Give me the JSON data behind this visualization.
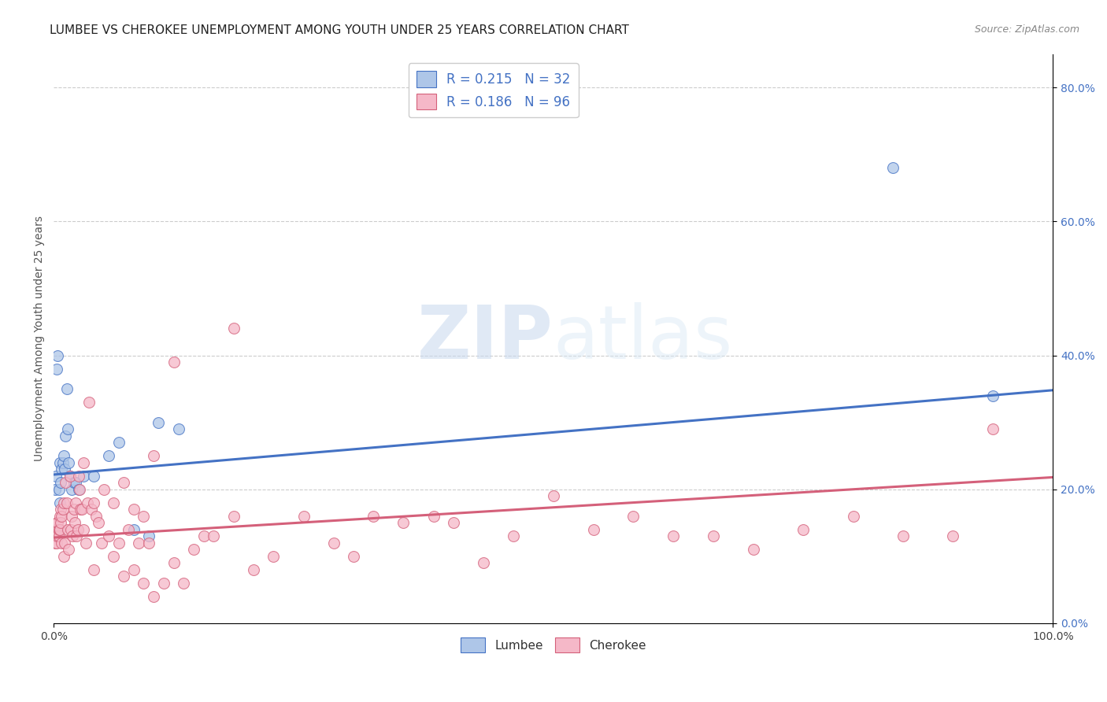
{
  "title": "LUMBEE VS CHEROKEE UNEMPLOYMENT AMONG YOUTH UNDER 25 YEARS CORRELATION CHART",
  "source": "Source: ZipAtlas.com",
  "ylabel": "Unemployment Among Youth under 25 years",
  "lumbee_R": 0.215,
  "lumbee_N": 32,
  "cherokee_R": 0.186,
  "cherokee_N": 96,
  "lumbee_color": "#aec6e8",
  "cherokee_color": "#f5b8c8",
  "lumbee_line_color": "#4472c4",
  "cherokee_line_color": "#d4607a",
  "lumbee_x": [
    0.001,
    0.002,
    0.003,
    0.003,
    0.004,
    0.005,
    0.006,
    0.006,
    0.007,
    0.008,
    0.009,
    0.01,
    0.011,
    0.012,
    0.013,
    0.014,
    0.015,
    0.016,
    0.018,
    0.02,
    0.022,
    0.025,
    0.03,
    0.04,
    0.055,
    0.065,
    0.08,
    0.095,
    0.105,
    0.125,
    0.84,
    0.94
  ],
  "lumbee_y": [
    0.2,
    0.22,
    0.38,
    0.14,
    0.4,
    0.2,
    0.18,
    0.24,
    0.21,
    0.23,
    0.24,
    0.25,
    0.23,
    0.28,
    0.35,
    0.29,
    0.24,
    0.22,
    0.2,
    0.21,
    0.21,
    0.2,
    0.22,
    0.22,
    0.25,
    0.27,
    0.14,
    0.13,
    0.3,
    0.29,
    0.68,
    0.34
  ],
  "cherokee_x": [
    0.001,
    0.001,
    0.002,
    0.002,
    0.002,
    0.003,
    0.003,
    0.004,
    0.004,
    0.005,
    0.005,
    0.006,
    0.006,
    0.007,
    0.007,
    0.008,
    0.008,
    0.009,
    0.01,
    0.01,
    0.011,
    0.012,
    0.013,
    0.014,
    0.015,
    0.016,
    0.017,
    0.018,
    0.019,
    0.02,
    0.021,
    0.022,
    0.023,
    0.024,
    0.025,
    0.026,
    0.027,
    0.028,
    0.03,
    0.032,
    0.034,
    0.035,
    0.038,
    0.04,
    0.042,
    0.045,
    0.048,
    0.05,
    0.055,
    0.06,
    0.065,
    0.07,
    0.075,
    0.08,
    0.085,
    0.09,
    0.095,
    0.1,
    0.11,
    0.12,
    0.13,
    0.14,
    0.15,
    0.16,
    0.18,
    0.2,
    0.22,
    0.25,
    0.28,
    0.3,
    0.32,
    0.35,
    0.38,
    0.4,
    0.43,
    0.46,
    0.5,
    0.54,
    0.58,
    0.62,
    0.66,
    0.7,
    0.75,
    0.8,
    0.85,
    0.9,
    0.94,
    0.18,
    0.12,
    0.06,
    0.07,
    0.08,
    0.09,
    0.1,
    0.04,
    0.03
  ],
  "cherokee_y": [
    0.12,
    0.14,
    0.14,
    0.13,
    0.13,
    0.12,
    0.15,
    0.13,
    0.15,
    0.13,
    0.14,
    0.14,
    0.16,
    0.15,
    0.17,
    0.16,
    0.12,
    0.17,
    0.18,
    0.1,
    0.12,
    0.21,
    0.18,
    0.14,
    0.11,
    0.22,
    0.14,
    0.16,
    0.13,
    0.17,
    0.15,
    0.18,
    0.13,
    0.14,
    0.22,
    0.2,
    0.17,
    0.17,
    0.14,
    0.12,
    0.18,
    0.33,
    0.17,
    0.18,
    0.16,
    0.15,
    0.12,
    0.2,
    0.13,
    0.18,
    0.12,
    0.21,
    0.14,
    0.17,
    0.12,
    0.16,
    0.12,
    0.25,
    0.06,
    0.09,
    0.06,
    0.11,
    0.13,
    0.13,
    0.16,
    0.08,
    0.1,
    0.16,
    0.12,
    0.1,
    0.16,
    0.15,
    0.16,
    0.15,
    0.09,
    0.13,
    0.19,
    0.14,
    0.16,
    0.13,
    0.13,
    0.11,
    0.14,
    0.16,
    0.13,
    0.13,
    0.29,
    0.44,
    0.39,
    0.1,
    0.07,
    0.08,
    0.06,
    0.04,
    0.08,
    0.24
  ],
  "lumbee_trend": [
    0.222,
    0.348
  ],
  "cherokee_trend": [
    0.128,
    0.218
  ],
  "xlim": [
    0.0,
    1.0
  ],
  "ylim": [
    0.0,
    0.85
  ],
  "right_yticks": [
    0.0,
    0.2,
    0.4,
    0.6,
    0.8
  ],
  "right_yticklabels": [
    "0.0%",
    "20.0%",
    "40.0%",
    "60.0%",
    "80.0%"
  ],
  "title_fontsize": 11,
  "tick_fontsize": 10
}
